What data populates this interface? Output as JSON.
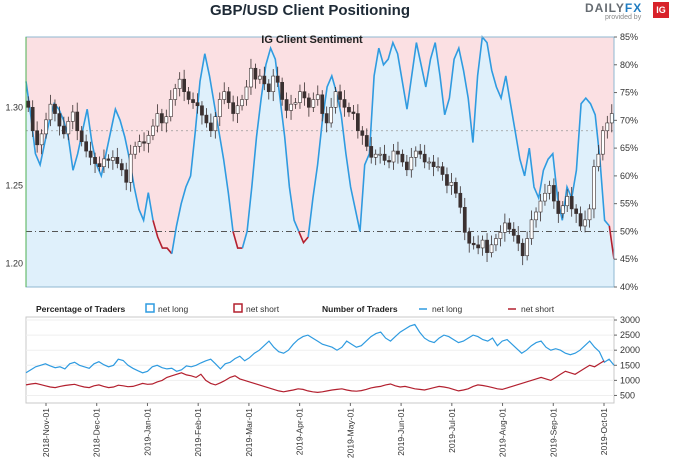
{
  "header": {
    "title": "GBP/USD Client Positioning",
    "brand_name": "DAILY",
    "brand_fx": "FX",
    "brand_tag": "provided by",
    "brand_ig": "IG"
  },
  "colors": {
    "net_long": "#2f9be0",
    "net_short": "#b3202f",
    "long_fill": "#dff0fb",
    "short_fill": "#fbe0e3",
    "candle": "#3a3030"
  },
  "chart_data": [
    {
      "type": "area",
      "title": "IG Client Sentiment",
      "left_axis_ticks": [
        "1.20",
        "1.25",
        "1.30"
      ],
      "left_axis_values": [
        1.2,
        1.25,
        1.3
      ],
      "ylim_left": [
        1.185,
        1.345
      ],
      "right_axis_ticks": [
        "40%",
        "45%",
        "50%",
        "55%",
        "60%",
        "65%",
        "70%",
        "75%",
        "80%",
        "85%"
      ],
      "right_axis_values": [
        40,
        45,
        50,
        55,
        60,
        65,
        70,
        75,
        80,
        85
      ],
      "ylim_right": [
        40,
        85
      ],
      "reference_line_pct": 50,
      "series": [
        {
          "name": "net long",
          "kind": "sentiment",
          "values": [
            77,
            71,
            64,
            62,
            66,
            70,
            73,
            72,
            70,
            67,
            61,
            64,
            68,
            72,
            66,
            62,
            60,
            64,
            68,
            72,
            70,
            67,
            63,
            58,
            54,
            52,
            57,
            52,
            49,
            47,
            47,
            46,
            51,
            55,
            58,
            60,
            68,
            77,
            82,
            78,
            73,
            68,
            63,
            57,
            50,
            47,
            47,
            50,
            58,
            67,
            74,
            80,
            83,
            81,
            74,
            67,
            58,
            52,
            50,
            48,
            49,
            56,
            62,
            70,
            76,
            78,
            75,
            71,
            64,
            58,
            54,
            50,
            62,
            64,
            78,
            83,
            80,
            81,
            84,
            82,
            77,
            72,
            78,
            84,
            80,
            76,
            81,
            84,
            78,
            71,
            74,
            81,
            83,
            79,
            74,
            66,
            78,
            85,
            84,
            79,
            76,
            74,
            78,
            73,
            68,
            63,
            60,
            65,
            58,
            56,
            61,
            63,
            64,
            56,
            52,
            58,
            56,
            61,
            73,
            74,
            73,
            71,
            63,
            52,
            51,
            45
          ]
        },
        {
          "name": "price",
          "kind": "candles",
          "values": [
            1.3,
            1.285,
            1.276,
            1.283,
            1.292,
            1.302,
            1.296,
            1.288,
            1.283,
            1.291,
            1.297,
            1.285,
            1.278,
            1.272,
            1.268,
            1.264,
            1.262,
            1.267,
            1.266,
            1.268,
            1.264,
            1.26,
            1.252,
            1.27,
            1.275,
            1.278,
            1.277,
            1.282,
            1.288,
            1.296,
            1.29,
            1.294,
            1.305,
            1.312,
            1.318,
            1.31,
            1.305,
            1.303,
            1.301,
            1.295,
            1.29,
            1.285,
            1.294,
            1.305,
            1.31,
            1.303,
            1.296,
            1.301,
            1.305,
            1.313,
            1.325,
            1.318,
            1.32,
            1.315,
            1.31,
            1.32,
            1.316,
            1.305,
            1.298,
            1.302,
            1.303,
            1.31,
            1.306,
            1.3,
            1.305,
            1.308,
            1.296,
            1.29,
            1.3,
            1.31,
            1.305,
            1.3,
            1.297,
            1.296,
            1.285,
            1.282,
            1.275,
            1.268,
            1.27,
            1.27,
            1.266,
            1.265,
            1.272,
            1.27,
            1.265,
            1.26,
            1.268,
            1.272,
            1.27,
            1.265,
            1.265,
            1.262,
            1.262,
            1.257,
            1.25,
            1.252,
            1.245,
            1.236,
            1.22,
            1.213,
            1.212,
            1.21,
            1.215,
            1.207,
            1.212,
            1.216,
            1.22,
            1.226,
            1.222,
            1.218,
            1.213,
            1.205,
            1.216,
            1.228,
            1.233,
            1.24,
            1.245,
            1.25,
            1.24,
            1.232,
            1.237,
            1.243,
            1.235,
            1.232,
            1.224,
            1.228,
            1.235,
            1.262,
            1.27,
            1.285,
            1.29,
            1.296
          ]
        }
      ]
    },
    {
      "type": "line",
      "title": "Percentage of Traders",
      "number_title": "Number of Traders",
      "x_ticks": [
        "2018-Nov-01",
        "2018-Dec-01",
        "2019-Jan-01",
        "2019-Feb-01",
        "2019-Mar-01",
        "2019-Apr-01",
        "2019-May-01",
        "2019-Jun-01",
        "2019-Jul-01",
        "2019-Aug-01",
        "2019-Sep-01",
        "2019-Oct-01"
      ],
      "right_axis_ticks": [
        "500",
        "1000",
        "1500",
        "2000",
        "2500",
        "3000"
      ],
      "right_axis_values": [
        500,
        1000,
        1500,
        2000,
        2500,
        3000
      ],
      "ylim": [
        250,
        3100
      ],
      "legend": [
        {
          "group": "Percentage of Traders",
          "label": "net long",
          "style": "box"
        },
        {
          "group": "Percentage of Traders",
          "label": "net short",
          "style": "box"
        },
        {
          "group": "Number of Traders",
          "label": "net long",
          "style": "line"
        },
        {
          "group": "Number of Traders",
          "label": "net short",
          "style": "line"
        }
      ],
      "series": [
        {
          "name": "net long",
          "values": [
            1250,
            1350,
            1450,
            1500,
            1550,
            1480,
            1420,
            1450,
            1380,
            1550,
            1600,
            1500,
            1450,
            1400,
            1550,
            1620,
            1520,
            1450,
            1500,
            1700,
            1660,
            1500,
            1400,
            1320,
            1250,
            1300,
            1450,
            1500,
            1420,
            1380,
            1400,
            1300,
            1350,
            1480,
            1450,
            1500,
            1580,
            1650,
            1700,
            1550,
            1380,
            1550,
            1600,
            1720,
            1800,
            1650,
            1750,
            1900,
            2000,
            2150,
            2300,
            2100,
            1950,
            1900,
            2000,
            2200,
            2350,
            2450,
            2500,
            2400,
            2300,
            2200,
            2150,
            2100,
            2000,
            2100,
            2300,
            2200,
            2100,
            2150,
            2300,
            2450,
            2550,
            2600,
            2400,
            2300,
            2450,
            2600,
            2700,
            2800,
            2850,
            2600,
            2400,
            2300,
            2250,
            2400,
            2500,
            2450,
            2350,
            2250,
            2300,
            2400,
            2500,
            2450,
            2350,
            2300,
            2400,
            2150,
            2300,
            2350,
            2200,
            2050,
            1900,
            2000,
            2150,
            2250,
            2300,
            2100,
            2000,
            2050,
            2000,
            1900,
            1850,
            1900,
            2000,
            2150,
            2300,
            2100,
            1950,
            1600,
            1700,
            1500
          ]
        },
        {
          "name": "net short",
          "values": [
            850,
            880,
            900,
            860,
            820,
            780,
            760,
            800,
            830,
            850,
            870,
            820,
            780,
            760,
            820,
            850,
            800,
            760,
            780,
            840,
            820,
            790,
            800,
            850,
            900,
            870,
            880,
            950,
            1000,
            1100,
            1150,
            1200,
            1250,
            1180,
            1150,
            1100,
            1200,
            1000,
            900,
            850,
            920,
            1000,
            1100,
            1150,
            1050,
            1000,
            950,
            900,
            850,
            800,
            750,
            700,
            650,
            620,
            650,
            680,
            720,
            700,
            650,
            620,
            600,
            620,
            650,
            680,
            700,
            720,
            680,
            650,
            640,
            660,
            700,
            750,
            780,
            800,
            850,
            880,
            820,
            780,
            800,
            760,
            720,
            700,
            680,
            720,
            760,
            800,
            780,
            750,
            700,
            650,
            680,
            720,
            800,
            850,
            830,
            800,
            760,
            720,
            700,
            750,
            800,
            850,
            900,
            950,
            1000,
            1050,
            1100,
            1050,
            1000,
            1100,
            1200,
            1300,
            1250,
            1200,
            1300,
            1400,
            1500,
            1450,
            1550,
            1650
          ]
        }
      ]
    }
  ]
}
